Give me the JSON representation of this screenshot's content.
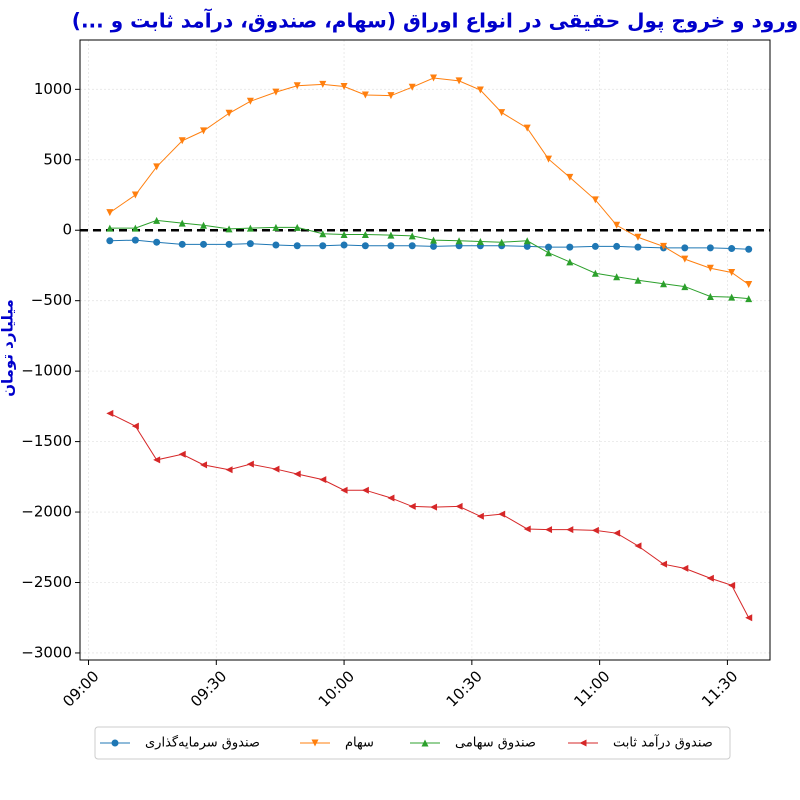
{
  "chart_data": {
    "type": "line",
    "title": "ورود و خروج پول حقیقی در انواع اوراق (سهام، صندوق، درآمد ثابت و ...)",
    "y_label": "میلیارد تومان",
    "x": [
      "09:05",
      "09:11",
      "09:16",
      "09:22",
      "09:27",
      "09:33",
      "09:38",
      "09:44",
      "09:49",
      "09:55",
      "10:00",
      "10:05",
      "10:11",
      "10:16",
      "10:21",
      "10:27",
      "10:32",
      "10:37",
      "10:43",
      "10:48",
      "10:53",
      "10:59",
      "11:04",
      "11:09",
      "11:15",
      "11:20",
      "11:26",
      "11:31",
      "11:35"
    ],
    "series": [
      {
        "name": "صندوق سرمایه‌گذاری",
        "color": "#1f77b4",
        "marker": "circle",
        "values": [
          -75,
          -70,
          -85,
          -100,
          -100,
          -100,
          -95,
          -105,
          -110,
          -110,
          -105,
          -110,
          -110,
          -110,
          -115,
          -110,
          -110,
          -110,
          -115,
          -120,
          -120,
          -115,
          -115,
          -120,
          -125,
          -125,
          -125,
          -130,
          -135
        ]
      },
      {
        "name": "سهام",
        "color": "#ff7f0e",
        "marker": "triangle-down",
        "values": [
          125,
          250,
          450,
          635,
          705,
          830,
          915,
          980,
          1025,
          1035,
          1020,
          960,
          955,
          1015,
          1080,
          1060,
          995,
          835,
          725,
          505,
          375,
          215,
          35,
          -50,
          -115,
          -205,
          -270,
          -300,
          -385
        ]
      },
      {
        "name": "صندوق سهامی",
        "color": "#2ca02c",
        "marker": "triangle-up",
        "values": [
          15,
          15,
          70,
          50,
          35,
          10,
          15,
          20,
          20,
          -25,
          -30,
          -30,
          -35,
          -40,
          -70,
          -75,
          -80,
          -85,
          -75,
          -160,
          -225,
          -305,
          -330,
          -355,
          -380,
          -400,
          -470,
          -475,
          -485
        ]
      },
      {
        "name": "صندوق درآمد ثابت",
        "color": "#d62728",
        "marker": "triangle-left",
        "values": [
          -1300,
          -1390,
          -1630,
          -1590,
          -1665,
          -1700,
          -1660,
          -1695,
          -1730,
          -1770,
          -1845,
          -1845,
          -1900,
          -1960,
          -1965,
          -1960,
          -2030,
          -2015,
          -2120,
          -2125,
          -2125,
          -2130,
          -2150,
          -2240,
          -2370,
          -2400,
          -2470,
          -2520,
          -2750
        ]
      }
    ],
    "xlim": [
      "08:58",
      "11:40"
    ],
    "xticks": [
      "09:00",
      "09:30",
      "10:00",
      "10:30",
      "11:00",
      "11:30"
    ],
    "ylim": [
      -3050,
      1350
    ],
    "yticks": [
      {
        "value": -3000,
        "label": "−3000"
      },
      {
        "value": -2500,
        "label": "−2500"
      },
      {
        "value": -2000,
        "label": "−2000"
      },
      {
        "value": -1500,
        "label": "−1500"
      },
      {
        "value": -1000,
        "label": "−1000"
      },
      {
        "value": -500,
        "label": "−500"
      },
      0,
      500,
      1000
    ],
    "hline": 0,
    "grid": true,
    "legend": "bottom"
  }
}
